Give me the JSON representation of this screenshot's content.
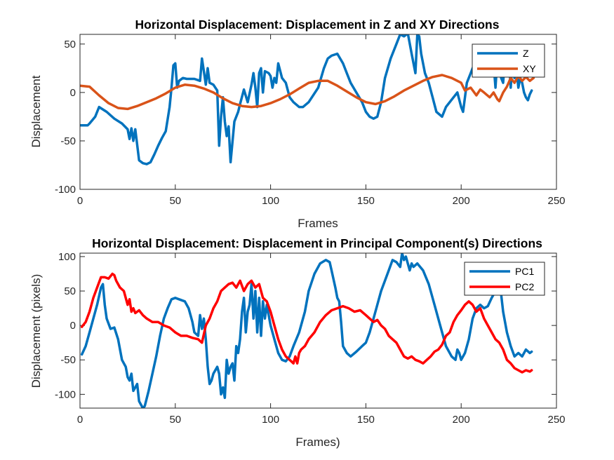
{
  "chart_data": [
    {
      "type": "line",
      "title": "Horizontal Displacement: Displacement in Z and XY Directions",
      "xlabel": "Frames",
      "ylabel": "Displacement",
      "xlim": [
        0,
        250
      ],
      "ylim": [
        -100,
        60
      ],
      "xticks": [
        0,
        50,
        100,
        150,
        200,
        250
      ],
      "yticks": [
        -100,
        -50,
        0,
        50
      ],
      "legend_position": "top-right",
      "grid": false,
      "series": [
        {
          "name": "Z",
          "color": "#0072BD",
          "x": [
            0,
            4,
            5,
            8,
            10,
            14,
            18,
            22,
            25,
            26,
            27,
            28,
            29,
            31,
            33,
            35,
            37,
            39,
            41,
            43,
            45,
            47,
            48,
            49,
            50,
            51,
            52,
            54,
            56,
            60,
            63,
            64,
            65,
            66,
            67,
            68,
            70,
            72,
            73,
            74,
            75,
            76,
            77,
            78,
            79,
            81,
            83,
            84,
            86,
            88,
            90,
            91,
            92,
            93,
            94,
            95,
            96,
            97,
            99,
            100,
            101,
            102,
            103,
            104,
            106,
            108,
            110,
            112,
            115,
            117,
            120,
            125,
            128,
            130,
            132,
            135,
            138,
            140,
            142,
            145,
            148,
            150,
            152,
            154,
            156,
            158,
            160,
            163,
            166,
            168,
            170,
            172,
            174,
            176,
            177,
            178,
            179,
            180,
            181,
            183,
            185,
            187,
            190,
            192,
            194,
            196,
            198,
            200,
            201,
            202,
            203,
            205,
            207,
            208,
            209,
            210,
            211,
            213,
            215,
            217,
            218,
            219,
            220,
            221,
            222,
            223,
            224,
            225,
            226,
            227,
            228,
            229,
            230,
            231,
            232,
            233,
            234,
            235,
            236,
            237
          ],
          "values": [
            -34,
            -34,
            -32,
            -25,
            -15,
            -20,
            -27,
            -32,
            -38,
            -48,
            -37,
            -50,
            -38,
            -70,
            -73,
            -74,
            -72,
            -64,
            -55,
            -47,
            -40,
            -15,
            5,
            28,
            30,
            5,
            12,
            15,
            14,
            14,
            12,
            35,
            22,
            8,
            25,
            10,
            8,
            2,
            -55,
            -25,
            -5,
            -30,
            -45,
            -35,
            -72,
            -30,
            -20,
            -12,
            3,
            -10,
            8,
            20,
            5,
            -15,
            20,
            25,
            0,
            22,
            20,
            17,
            5,
            15,
            10,
            30,
            15,
            10,
            -5,
            -10,
            -15,
            -15,
            -10,
            5,
            25,
            35,
            38,
            40,
            30,
            20,
            10,
            0,
            -10,
            -20,
            -25,
            -27,
            -25,
            -10,
            15,
            35,
            50,
            60,
            58,
            61,
            40,
            20,
            60,
            58,
            40,
            30,
            20,
            10,
            -5,
            -20,
            -25,
            -15,
            -10,
            -5,
            0,
            -15,
            -20,
            -5,
            10,
            20,
            30,
            20,
            35,
            25,
            30,
            20,
            45,
            30,
            5,
            35,
            40,
            15,
            10,
            35,
            20,
            35,
            5,
            35,
            15,
            25,
            5,
            15,
            10,
            0,
            -5,
            -8,
            -2,
            2
          ]
        },
        {
          "name": "XY",
          "color": "#D95319",
          "x": [
            0,
            5,
            10,
            15,
            20,
            25,
            30,
            35,
            40,
            45,
            50,
            55,
            60,
            65,
            70,
            75,
            80,
            85,
            90,
            95,
            100,
            105,
            110,
            115,
            120,
            125,
            130,
            135,
            140,
            145,
            150,
            155,
            160,
            165,
            170,
            175,
            180,
            185,
            190,
            195,
            200,
            202,
            205,
            208,
            210,
            212,
            215,
            217,
            219,
            220,
            222,
            224,
            226,
            228,
            230,
            232,
            234,
            236,
            238
          ],
          "values": [
            7,
            6,
            -3,
            -11,
            -16,
            -17,
            -14,
            -10,
            -6,
            -1,
            5,
            8,
            7,
            4,
            0,
            -6,
            -11,
            -14,
            -15,
            -14,
            -11,
            -7,
            -2,
            4,
            10,
            12,
            12,
            7,
            1,
            -5,
            -10,
            -12,
            -9,
            -4,
            2,
            7,
            12,
            16,
            18,
            15,
            10,
            2,
            5,
            -3,
            3,
            0,
            -5,
            0,
            -7,
            -9,
            0,
            6,
            15,
            10,
            17,
            12,
            16,
            12,
            15
          ]
        }
      ]
    },
    {
      "type": "line",
      "title": "Horizontal Displacement: Displacement in Principal Component(s) Directions",
      "xlabel": "Frames)",
      "ylabel": "Displacement (pixels)",
      "xlim": [
        0,
        250
      ],
      "ylim": [
        -120,
        105
      ],
      "xticks": [
        0,
        50,
        100,
        150,
        200,
        250
      ],
      "yticks": [
        -100,
        -50,
        0,
        50,
        100
      ],
      "legend_position": "top-right",
      "grid": false,
      "series": [
        {
          "name": "PC1",
          "color": "#0072BD",
          "x": [
            1,
            3,
            5,
            7,
            9,
            11,
            12,
            13,
            14,
            16,
            18,
            20,
            22,
            24,
            25,
            26,
            27,
            28,
            30,
            31,
            32,
            33,
            34,
            36,
            38,
            40,
            42,
            44,
            46,
            48,
            50,
            52,
            55,
            57,
            59,
            60,
            62,
            63,
            64,
            65,
            66,
            67,
            68,
            69,
            70,
            72,
            73,
            74,
            75,
            76,
            77,
            78,
            79,
            80,
            81,
            82,
            83,
            84,
            85,
            86,
            87,
            88,
            89,
            90,
            91,
            92,
            93,
            94,
            95,
            96,
            97,
            98,
            100,
            102,
            104,
            106,
            108,
            110,
            112,
            115,
            118,
            120,
            123,
            126,
            129,
            131,
            132,
            134,
            135,
            136,
            137,
            138,
            140,
            142,
            145,
            148,
            150,
            152,
            154,
            156,
            158,
            160,
            162,
            164,
            166,
            168,
            169,
            170,
            171,
            173,
            174,
            175,
            177,
            180,
            183,
            186,
            189,
            192,
            195,
            197,
            198,
            199,
            200,
            202,
            204,
            206,
            208,
            210,
            212,
            214,
            216,
            218,
            220,
            221,
            222,
            224,
            226,
            228,
            230,
            232,
            234,
            236,
            237
          ],
          "values": [
            -42,
            -30,
            -10,
            10,
            30,
            55,
            60,
            30,
            10,
            -5,
            -3,
            -20,
            -50,
            -60,
            -75,
            -80,
            -70,
            -95,
            -85,
            -110,
            -115,
            -120,
            -117,
            -95,
            -70,
            -45,
            -15,
            10,
            25,
            38,
            40,
            38,
            35,
            25,
            5,
            -10,
            -15,
            15,
            -5,
            10,
            -20,
            -60,
            -85,
            -80,
            -70,
            -60,
            -70,
            -100,
            -90,
            -105,
            -50,
            -70,
            -60,
            -55,
            -80,
            -30,
            -40,
            -20,
            20,
            40,
            -10,
            20,
            30,
            60,
            10,
            50,
            -10,
            40,
            -15,
            35,
            10,
            30,
            0,
            -20,
            -40,
            -50,
            -52,
            -45,
            -30,
            -10,
            20,
            50,
            75,
            90,
            95,
            92,
            80,
            55,
            40,
            35,
            5,
            -30,
            -40,
            -45,
            -38,
            -30,
            -25,
            -10,
            10,
            30,
            50,
            65,
            80,
            95,
            92,
            85,
            105,
            95,
            100,
            80,
            90,
            85,
            90,
            80,
            60,
            30,
            0,
            -30,
            -45,
            -50,
            -35,
            -40,
            -50,
            -40,
            -20,
            10,
            25,
            30,
            25,
            28,
            40,
            50,
            52,
            45,
            20,
            -10,
            -30,
            -45,
            -40,
            -45,
            -35,
            -40,
            -38
          ]
        },
        {
          "name": "PC2",
          "color": "#FF0000",
          "x": [
            1,
            3,
            5,
            7,
            9,
            11,
            13,
            15,
            17,
            18,
            19,
            21,
            23,
            25,
            26,
            27,
            28,
            29,
            31,
            33,
            35,
            38,
            41,
            44,
            47,
            50,
            53,
            56,
            59,
            62,
            64,
            66,
            68,
            70,
            72,
            74,
            76,
            78,
            80,
            82,
            84,
            86,
            88,
            90,
            92,
            94,
            96,
            98,
            100,
            102,
            104,
            106,
            108,
            110,
            112,
            113,
            114,
            115,
            116,
            118,
            120,
            123,
            126,
            129,
            132,
            135,
            138,
            141,
            144,
            147,
            150,
            152,
            154,
            156,
            158,
            160,
            162,
            164,
            166,
            168,
            170,
            172,
            174,
            176,
            178,
            180,
            182,
            184,
            186,
            188,
            190,
            192,
            194,
            196,
            198,
            200,
            202,
            204,
            206,
            208,
            210,
            212,
            214,
            216,
            218,
            220,
            222,
            224,
            226,
            228,
            230,
            232,
            234,
            236,
            237
          ],
          "values": [
            -2,
            5,
            20,
            40,
            55,
            70,
            70,
            68,
            75,
            73,
            65,
            55,
            50,
            30,
            38,
            20,
            25,
            18,
            22,
            15,
            10,
            5,
            5,
            0,
            -3,
            -10,
            -15,
            -15,
            -18,
            -20,
            -25,
            0,
            10,
            25,
            35,
            50,
            55,
            60,
            62,
            55,
            65,
            50,
            60,
            65,
            55,
            60,
            40,
            35,
            20,
            0,
            -20,
            -35,
            -45,
            -50,
            -55,
            -45,
            -55,
            -40,
            -35,
            -30,
            -20,
            -10,
            5,
            15,
            22,
            25,
            28,
            25,
            20,
            22,
            15,
            10,
            5,
            8,
            0,
            -5,
            -15,
            -20,
            -25,
            -35,
            -45,
            -48,
            -45,
            -50,
            -52,
            -55,
            -50,
            -45,
            -38,
            -35,
            -28,
            -15,
            -10,
            5,
            15,
            22,
            30,
            35,
            30,
            20,
            25,
            10,
            0,
            -10,
            -20,
            -25,
            -35,
            -50,
            -55,
            -62,
            -65,
            -68,
            -65,
            -67,
            -65
          ]
        }
      ]
    }
  ]
}
